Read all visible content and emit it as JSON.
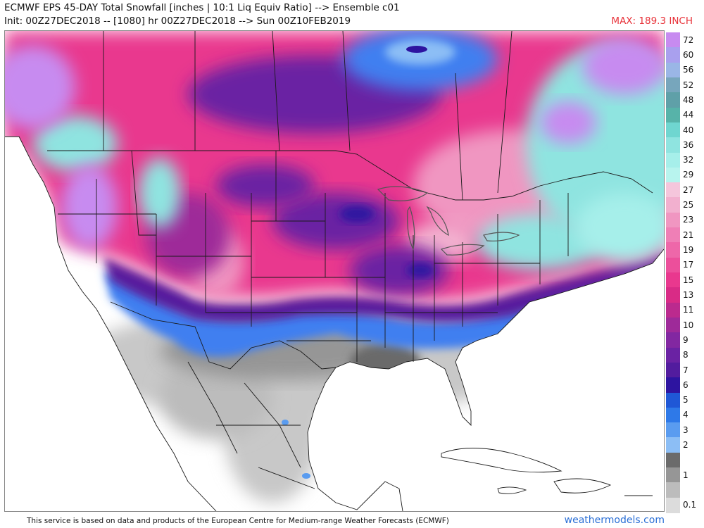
{
  "header": {
    "title_line1": "ECMWF EPS 45-DAY Total Snowfall [inches | 10:1 Liq Equiv Ratio] --> Ensemble c01",
    "title_line2": "Init: 00Z27DEC2018 -- [1080] hr 00Z27DEC2018 --> Sun 00Z10FEB2019",
    "max_label": "MAX: 189.3 INCH"
  },
  "legend": {
    "items": [
      {
        "label": "72",
        "color": "#c78bf0"
      },
      {
        "label": "60",
        "color": "#a9a0ee"
      },
      {
        "label": "56",
        "color": "#9ab6e6"
      },
      {
        "label": "52",
        "color": "#77a6bc"
      },
      {
        "label": "48",
        "color": "#5fa0a8"
      },
      {
        "label": "44",
        "color": "#57b3a9"
      },
      {
        "label": "40",
        "color": "#6fd6d0"
      },
      {
        "label": "36",
        "color": "#8fe4e0"
      },
      {
        "label": "32",
        "color": "#a6efea"
      },
      {
        "label": "29",
        "color": "#b8f4ee"
      },
      {
        "label": "27",
        "color": "#f5c6dc"
      },
      {
        "label": "25",
        "color": "#f2b0cf"
      },
      {
        "label": "23",
        "color": "#f096c1"
      },
      {
        "label": "21",
        "color": "#ef7fb6"
      },
      {
        "label": "19",
        "color": "#ee67a9"
      },
      {
        "label": "17",
        "color": "#ec4f9b"
      },
      {
        "label": "15",
        "color": "#e9388e"
      },
      {
        "label": "13",
        "color": "#d92b86"
      },
      {
        "label": "11",
        "color": "#bb2a8e"
      },
      {
        "label": "10",
        "color": "#9e2a99"
      },
      {
        "label": "9",
        "color": "#8227a1"
      },
      {
        "label": "8",
        "color": "#6a22a3"
      },
      {
        "label": "7",
        "color": "#521c9e"
      },
      {
        "label": "6",
        "color": "#2d14a0"
      },
      {
        "label": "5",
        "color": "#1f57d6"
      },
      {
        "label": "4",
        "color": "#2e79e8"
      },
      {
        "label": "3",
        "color": "#5a9cf0"
      },
      {
        "label": "2",
        "color": "#8cbef5"
      },
      {
        "label": "",
        "color": "#6b6b6b"
      },
      {
        "label": "1",
        "color": "#969696"
      },
      {
        "label": "",
        "color": "#bcbcbc"
      },
      {
        "label": "0.1",
        "color": "#dcdcdc"
      }
    ]
  },
  "map": {
    "colors": {
      "ocean": "#ffffff",
      "land_bare": "#ffffff",
      "boundary": "#1a1a1a",
      "lake": "#555555",
      "gray_heavy": "#8a8a8a",
      "gray_light": "#c8c8c8",
      "blue": "#3f7ff0",
      "blue_dark": "#2d14a0",
      "purple": "#6a22a3",
      "magenta": "#d92b86",
      "pink": "#ec4f9b",
      "pink_light": "#f096c1",
      "cyan": "#8fe4e0",
      "lavender": "#c78bf0"
    }
  },
  "footer": {
    "disclaimer": "This service is based on data and products of the European Centre for Medium-range Weather Forecasts (ECMWF)",
    "site": "weathermodels.com"
  }
}
